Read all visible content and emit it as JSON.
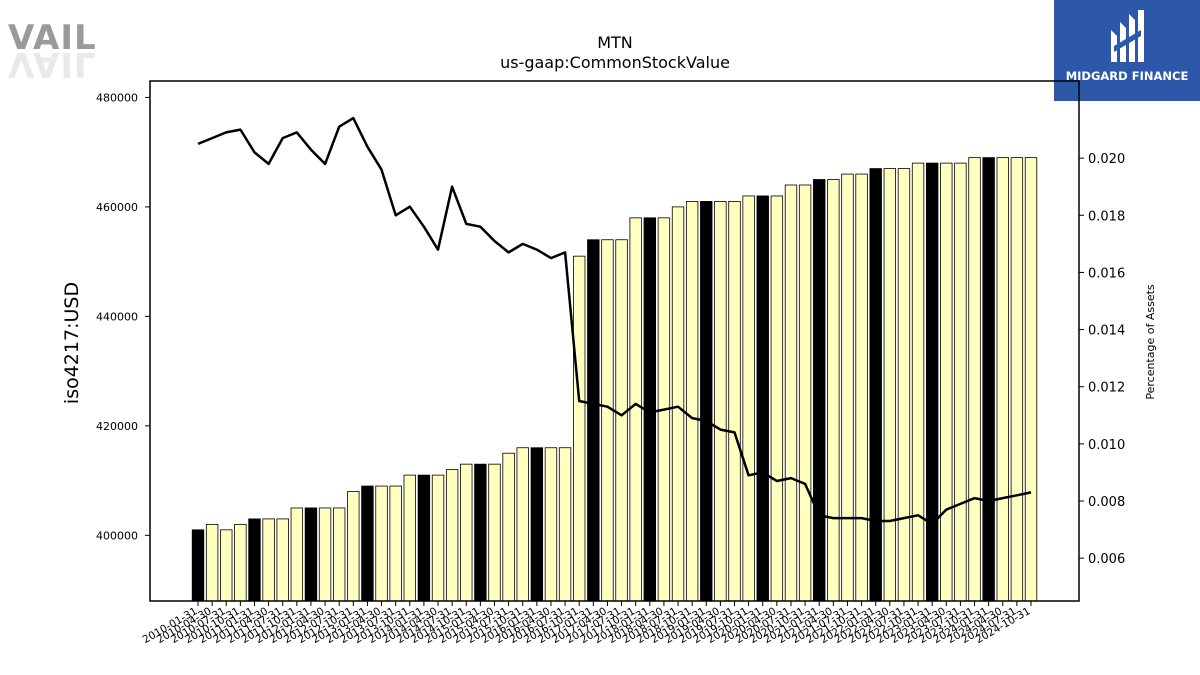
{
  "logos": {
    "left_text": "VAIL",
    "right_text": "MIDGARD FINANCE",
    "right_bg": "#2d57a8"
  },
  "chart_data": {
    "type": "bar",
    "title": "MTN",
    "subtitle": "us-gaap:CommonStockValue",
    "ylabel": "iso4217:USD",
    "y2label": "Percentage of Assets",
    "ylim": [
      388000,
      483000
    ],
    "y2lim": [
      0.0045,
      0.0227
    ],
    "yticks": [
      400000,
      420000,
      440000,
      460000,
      480000
    ],
    "y2ticks": [
      0.006,
      0.008,
      0.01,
      0.012,
      0.014,
      0.016,
      0.018,
      0.02
    ],
    "x_tick_labels": [
      "2010-01-31",
      "2010-04-30",
      "2010-07-31",
      "2010-10-31",
      "2011-01-31",
      "2011-04-30",
      "2011-07-31",
      "2011-10-31",
      "2012-01-31",
      "2012-04-30",
      "2012-07-31",
      "2012-10-31",
      "2013-01-31",
      "2013-04-30",
      "2013-07-31",
      "2013-10-31",
      "2014-01-31",
      "2014-04-30",
      "2014-07-31",
      "2014-10-31",
      "2015-01-31",
      "2015-04-30",
      "2015-07-31",
      "2015-10-31",
      "2016-01-31",
      "2016-04-30",
      "2016-07-31",
      "2016-10-31",
      "2017-01-31",
      "2017-04-30",
      "2017-07-31",
      "2017-10-31",
      "2018-01-31",
      "2018-04-30",
      "2018-07-31",
      "2018-10-31",
      "2019-01-31",
      "2019-04-30",
      "2019-07-31",
      "2019-10-31",
      "2020-01-31",
      "2020-04-30",
      "2020-07-31",
      "2020-10-31",
      "2021-01-31",
      "2021-04-30",
      "2021-07-31",
      "2021-10-31",
      "2022-01-31",
      "2022-04-30",
      "2022-07-31",
      "2022-10-31",
      "2023-01-31",
      "2023-04-30",
      "2023-07-31",
      "2023-10-31",
      "2024-01-31",
      "2024-04-30",
      "2024-07-31",
      "2024-10-31"
    ],
    "bar_values": [
      401000,
      402000,
      401000,
      402000,
      403000,
      403000,
      403000,
      405000,
      405000,
      405000,
      405000,
      408000,
      409000,
      409000,
      409000,
      411000,
      411000,
      411000,
      412000,
      413000,
      413000,
      413000,
      415000,
      416000,
      416000,
      416000,
      416000,
      451000,
      454000,
      454000,
      454000,
      458000,
      458000,
      458000,
      460000,
      461000,
      461000,
      461000,
      461000,
      462000,
      462000,
      462000,
      464000,
      464000,
      465000,
      465000,
      466000,
      466000,
      467000,
      467000,
      467000,
      468000,
      468000,
      468000,
      468000,
      469000,
      469000,
      469000,
      469000,
      469000
    ],
    "bar_highlight": [
      true,
      false,
      false,
      false,
      true,
      false,
      false,
      false,
      true,
      false,
      false,
      false,
      true,
      false,
      false,
      false,
      true,
      false,
      false,
      false,
      true,
      false,
      false,
      false,
      true,
      false,
      false,
      false,
      true,
      false,
      false,
      false,
      true,
      false,
      false,
      false,
      true,
      false,
      false,
      false,
      true,
      false,
      false,
      false,
      true,
      false,
      false,
      false,
      true,
      false,
      false,
      false,
      true,
      false,
      false,
      false,
      true,
      false,
      false,
      false
    ],
    "line_values": [
      0.0205,
      0.0207,
      0.0209,
      0.021,
      0.0202,
      0.0198,
      0.0207,
      0.0209,
      0.0203,
      0.0198,
      0.0211,
      0.0214,
      0.0204,
      0.0196,
      0.018,
      0.0183,
      0.0176,
      0.0168,
      0.019,
      0.0177,
      0.0176,
      0.0171,
      0.0167,
      0.017,
      0.0168,
      0.0165,
      0.0167,
      0.0115,
      0.0114,
      0.0113,
      0.011,
      0.0114,
      0.0111,
      0.0112,
      0.0113,
      0.0109,
      0.0108,
      0.0105,
      0.0104,
      0.0089,
      0.009,
      0.0087,
      0.0088,
      0.0086,
      0.0075,
      0.0074,
      0.0074,
      0.0074,
      0.0073,
      0.0073,
      0.0074,
      0.0075,
      0.0072,
      0.0077,
      0.0079,
      0.0081,
      0.008,
      0.0081,
      0.0082,
      0.0083
    ],
    "colors": {
      "bar_fill": "#ffffc0",
      "bar_highlight_fill": "#000000",
      "bar_edge": "#000000",
      "line": "#000000"
    },
    "grid": false,
    "legend": "none"
  }
}
